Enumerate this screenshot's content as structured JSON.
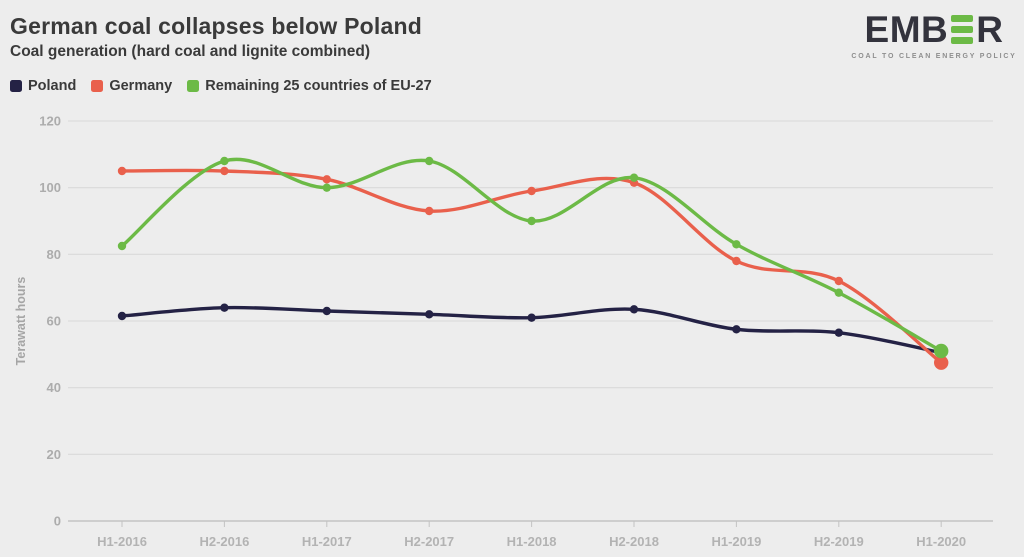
{
  "header": {
    "title": "German coal collapses below Poland",
    "subtitle": "Coal generation (hard coal and lignite combined)"
  },
  "logo": {
    "text_left": "EMB",
    "text_right": "R",
    "tagline": "COAL TO CLEAN ENERGY POLICY",
    "bar_color": "#6cba46",
    "text_color": "#33333d"
  },
  "legend": [
    {
      "label": "Poland",
      "color": "#242245"
    },
    {
      "label": "Germany",
      "color": "#e9604c"
    },
    {
      "label": "Remaining 25 countries of EU-27",
      "color": "#6cba46"
    }
  ],
  "chart_data": {
    "type": "line",
    "curve": "spline",
    "categories": [
      "H1-2016",
      "H2-2016",
      "H1-2017",
      "H2-2017",
      "H1-2018",
      "H2-2018",
      "H1-2019",
      "H2-2019",
      "H1-2020"
    ],
    "series": [
      {
        "name": "Poland",
        "color": "#242245",
        "values": [
          61.5,
          64,
          63,
          62,
          61,
          63.5,
          57.5,
          56.5,
          50.5
        ],
        "large_end_marker": false
      },
      {
        "name": "Germany",
        "color": "#e9604c",
        "values": [
          105,
          105,
          102.5,
          93,
          99,
          101.5,
          78,
          72,
          47.5
        ],
        "large_end_marker": true
      },
      {
        "name": "Remaining 25 countries of EU-27",
        "color": "#6cba46",
        "values": [
          82.5,
          108,
          100,
          108,
          90,
          103,
          83,
          68.5,
          51
        ],
        "large_end_marker": true
      }
    ],
    "xlabel": "",
    "ylabel": "Terawatt hours",
    "ylim": [
      0,
      120
    ],
    "ytick_step": 20,
    "grid": true,
    "legend_position": "top",
    "colors": {
      "grid": "#d9d9d9",
      "axis": "#c3c3c3",
      "tick_label": "#acacac",
      "axis_title": "#a5a5a5"
    }
  }
}
